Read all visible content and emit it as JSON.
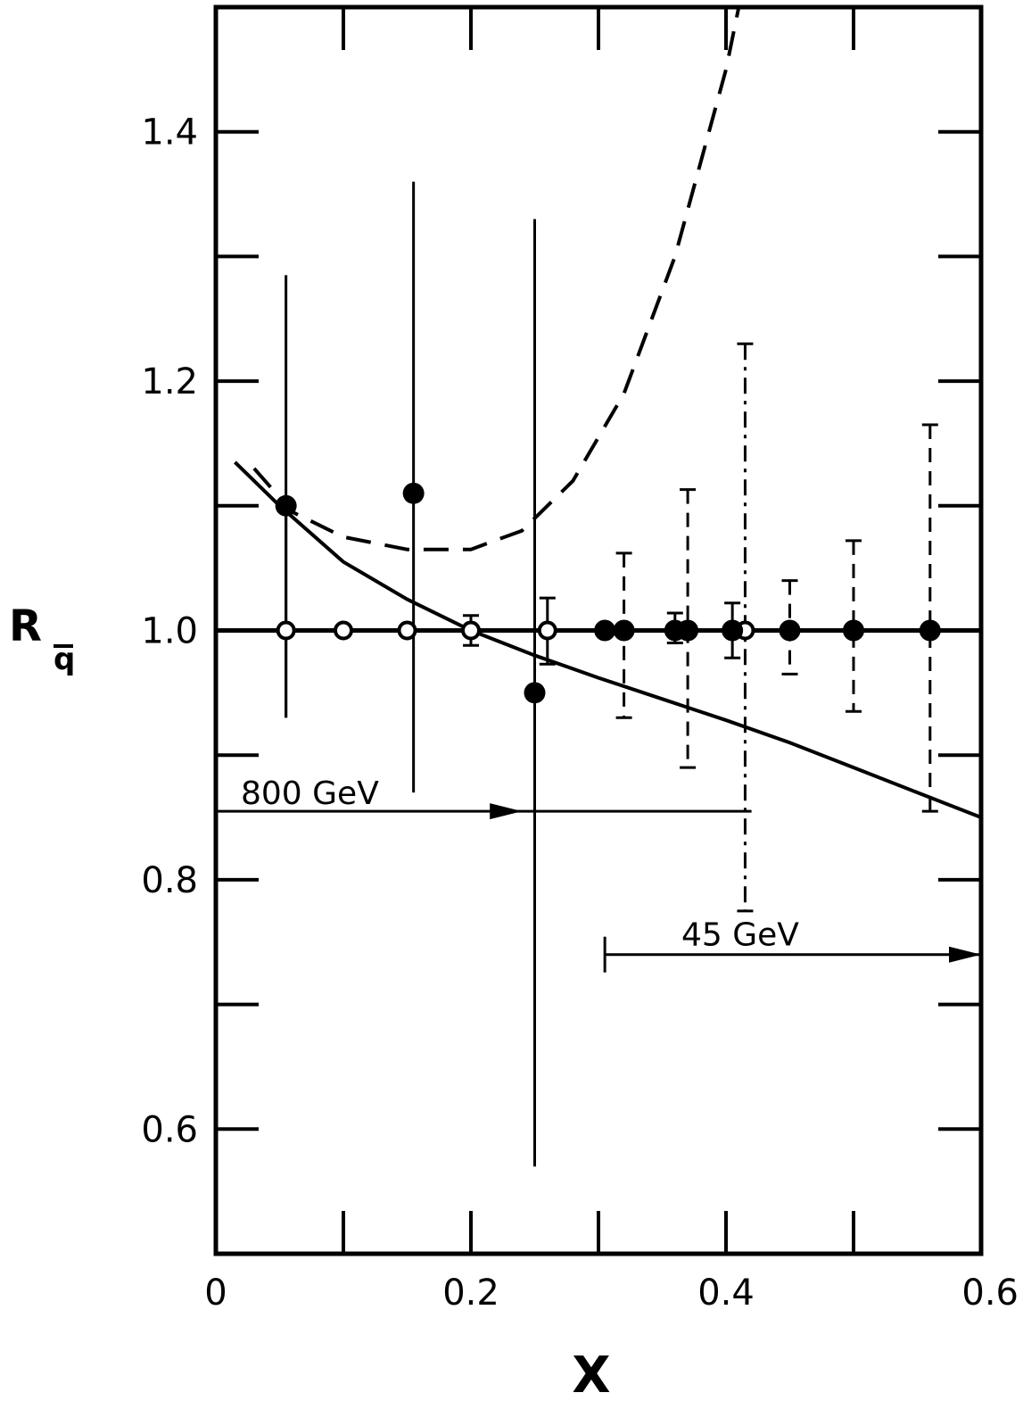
{
  "chart_data": {
    "type": "scatter",
    "title": "",
    "xlabel": "X",
    "ylabel_main": "R",
    "ylabel_sub": "q",
    "xlim": [
      0,
      0.6
    ],
    "ylim": [
      0.5,
      1.5
    ],
    "x_ticks": [
      0,
      0.1,
      0.2,
      0.3,
      0.4,
      0.5,
      0.6
    ],
    "x_tick_labels": [
      {
        "value": 0,
        "label": "0"
      },
      {
        "value": 0.2,
        "label": "0.2"
      },
      {
        "value": 0.4,
        "label": "0.4"
      },
      {
        "value": 0.6,
        "label": "0.6"
      }
    ],
    "y_ticks": [
      0.6,
      0.7,
      0.8,
      0.9,
      1.0,
      1.1,
      1.2,
      1.3,
      1.4
    ],
    "y_tick_labels": [
      {
        "value": 0.6,
        "label": "0.6"
      },
      {
        "value": 0.8,
        "label": "0.8"
      },
      {
        "value": 1.0,
        "label": "1.0"
      },
      {
        "value": 1.2,
        "label": "1.2"
      },
      {
        "value": 1.4,
        "label": "1.4"
      }
    ],
    "reference_line": 1.0,
    "series": [
      {
        "marker": "open-circle",
        "errstyle": "solid",
        "points": [
          {
            "x": 0.055,
            "y": 1.0,
            "lo": 0.93,
            "hi": 1.1
          },
          {
            "x": 0.1,
            "y": 1.0,
            "lo": 1.0,
            "hi": 1.0
          },
          {
            "x": 0.15,
            "y": 1.0,
            "lo": 1.0,
            "hi": 1.0
          },
          {
            "x": 0.2,
            "y": 1.0,
            "lo": 0.988,
            "hi": 1.012
          },
          {
            "x": 0.26,
            "y": 1.0,
            "lo": 0.973,
            "hi": 1.026
          },
          {
            "x": 0.32,
            "y": 1.0,
            "lo": 1.0,
            "hi": 1.0
          },
          {
            "x": 0.37,
            "y": 1.0,
            "lo": 1.0,
            "hi": 1.0
          },
          {
            "x": 0.415,
            "y": 1.0,
            "lo": 1.0,
            "hi": 1.0
          }
        ]
      },
      {
        "marker": "filled-circle",
        "errstyle": "solid",
        "points": [
          {
            "x": 0.055,
            "y": 1.1,
            "lo": 0.93,
            "hi": 1.285
          },
          {
            "x": 0.155,
            "y": 1.11,
            "lo": 0.87,
            "hi": 1.36
          },
          {
            "x": 0.25,
            "y": 0.95,
            "lo": 0.57,
            "hi": 1.33
          },
          {
            "x": 0.305,
            "y": 1.0,
            "lo": 1.0,
            "hi": 1.0
          },
          {
            "x": 0.36,
            "y": 1.0,
            "lo": 0.99,
            "hi": 1.014
          },
          {
            "x": 0.405,
            "y": 1.0,
            "lo": 0.978,
            "hi": 1.022
          }
        ]
      },
      {
        "marker": "filled-circle",
        "errstyle": "dashed",
        "points": [
          {
            "x": 0.32,
            "y": 1.0,
            "lo": 0.93,
            "hi": 1.062
          },
          {
            "x": 0.37,
            "y": 1.0,
            "lo": 0.89,
            "hi": 1.113
          },
          {
            "x": 0.45,
            "y": 1.0,
            "lo": 0.965,
            "hi": 1.04
          },
          {
            "x": 0.5,
            "y": 1.0,
            "lo": 0.935,
            "hi": 1.072
          },
          {
            "x": 0.56,
            "y": 1.0,
            "lo": 0.855,
            "hi": 1.165
          }
        ]
      },
      {
        "marker": "none",
        "errstyle": "dashdot",
        "points": [
          {
            "x": 0.415,
            "y": 1.0,
            "lo": 0.775,
            "hi": 1.23
          }
        ]
      }
    ],
    "curves": [
      {
        "style": "solid",
        "points": [
          [
            0.015,
            1.135
          ],
          [
            0.05,
            1.1
          ],
          [
            0.1,
            1.055
          ],
          [
            0.15,
            1.025
          ],
          [
            0.2,
            1.0
          ],
          [
            0.25,
            0.98
          ],
          [
            0.3,
            0.962
          ],
          [
            0.35,
            0.945
          ],
          [
            0.4,
            0.928
          ],
          [
            0.45,
            0.91
          ],
          [
            0.5,
            0.89
          ],
          [
            0.55,
            0.87
          ],
          [
            0.6,
            0.85
          ]
        ]
      },
      {
        "style": "dashed",
        "points": [
          [
            0.03,
            1.13
          ],
          [
            0.06,
            1.095
          ],
          [
            0.1,
            1.075
          ],
          [
            0.15,
            1.065
          ],
          [
            0.2,
            1.065
          ],
          [
            0.24,
            1.08
          ],
          [
            0.28,
            1.12
          ],
          [
            0.32,
            1.19
          ],
          [
            0.36,
            1.3
          ],
          [
            0.4,
            1.45
          ],
          [
            0.41,
            1.5
          ]
        ]
      }
    ],
    "arrows": [
      {
        "label": "800 GeV",
        "x_start": 0.0,
        "x_end": 0.42,
        "y": 0.855
      },
      {
        "label": "45 GeV",
        "x_start": 0.305,
        "x_end": 0.6,
        "y": 0.74
      }
    ]
  }
}
